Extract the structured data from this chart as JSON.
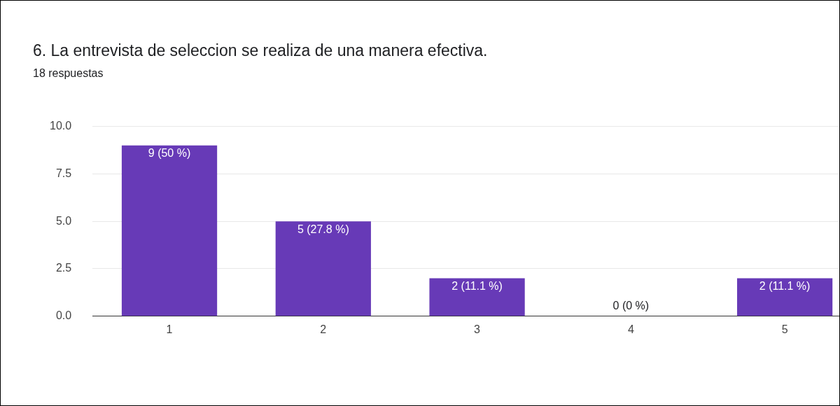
{
  "chart_data": {
    "type": "bar",
    "title": "6. La entrevista de seleccion se realiza de una manera efectiva.",
    "subtitle": "18 respuestas",
    "categories": [
      "1",
      "2",
      "3",
      "4",
      "5"
    ],
    "values": [
      9,
      5,
      2,
      0,
      2
    ],
    "value_labels": [
      "9 (50 %)",
      "5 (27.8 %)",
      "2 (11.1 %)",
      "0 (0 %)",
      "2 (11.1 %)"
    ],
    "color": "#673ab7",
    "ylim": [
      0,
      10
    ],
    "yticks": [
      {
        "value": 0,
        "label": "0.0"
      },
      2.5,
      {
        "value": 5,
        "label": "5.0"
      },
      7.5,
      {
        "value": 10,
        "label": "10.0"
      }
    ],
    "grid": "y",
    "legend": false
  }
}
